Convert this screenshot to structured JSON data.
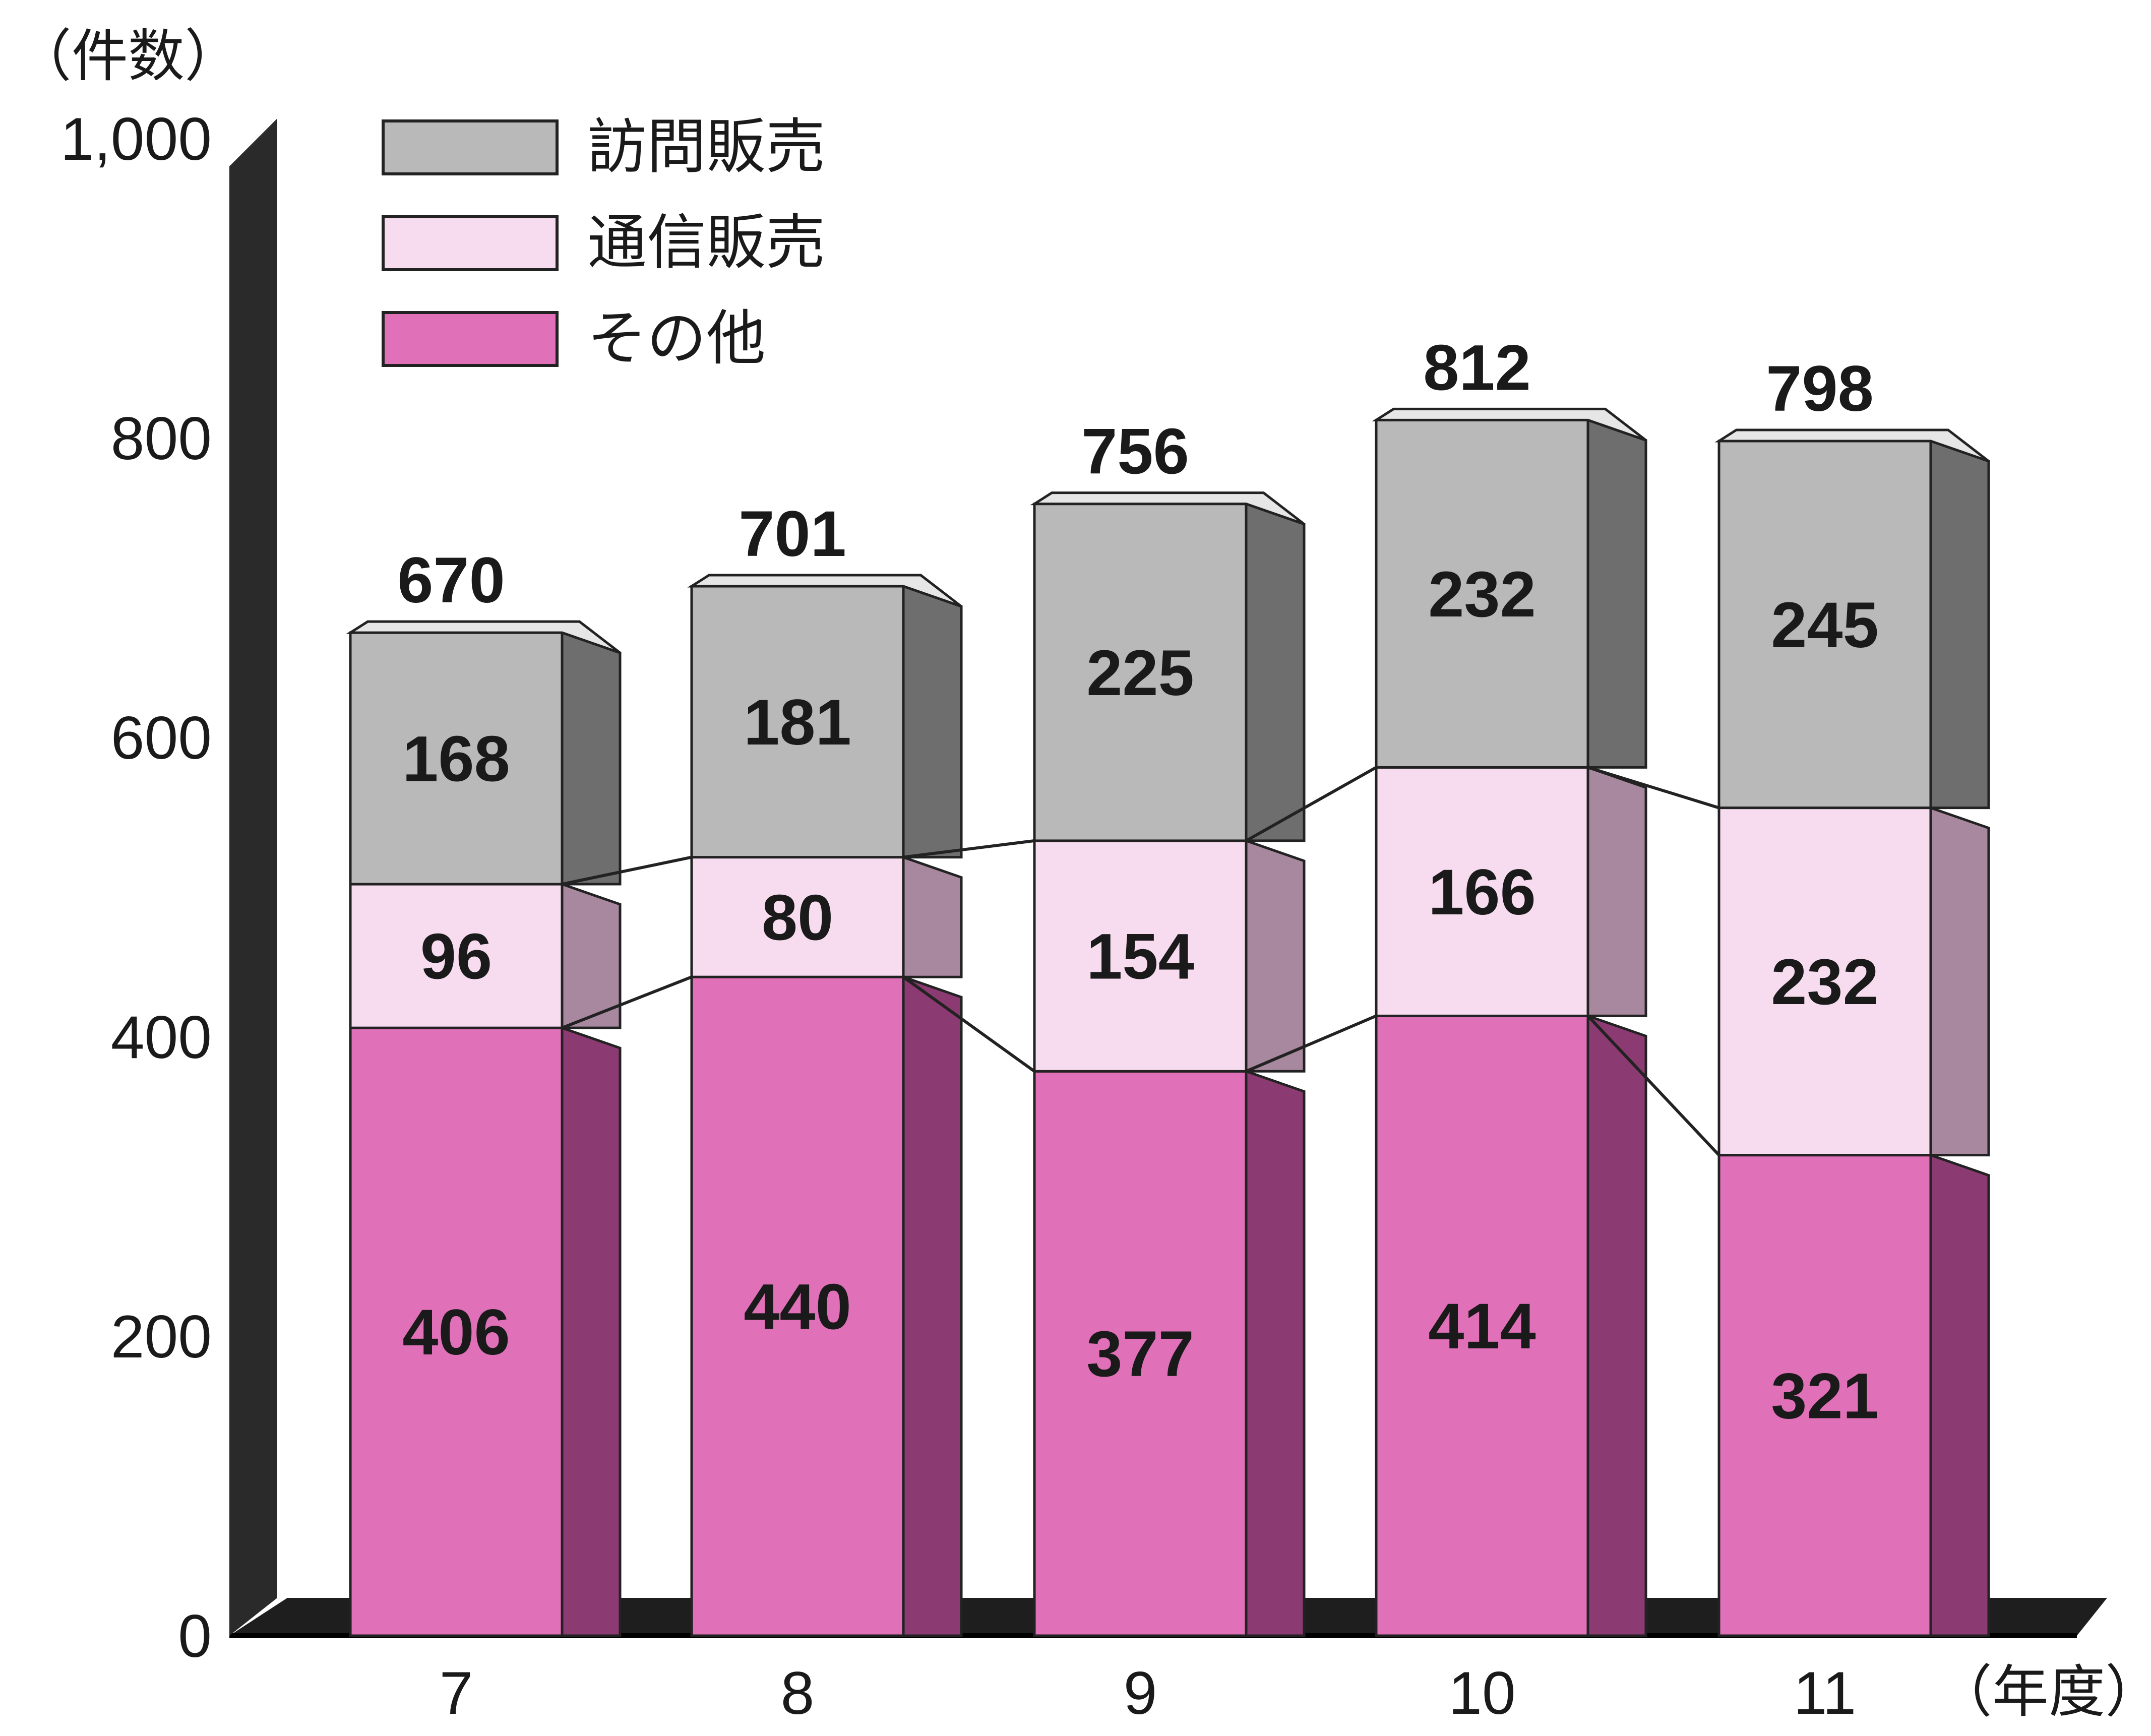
{
  "chart_data": {
    "type": "bar",
    "stacked": true,
    "categories": [
      "7",
      "8",
      "9",
      "10",
      "11"
    ],
    "series": [
      {
        "name": "その他",
        "values": [
          406,
          440,
          377,
          414,
          321
        ],
        "color": "#e070b8"
      },
      {
        "name": "通信販売",
        "values": [
          96,
          80,
          154,
          166,
          232
        ],
        "color": "#f7dcef"
      },
      {
        "name": "訪問販売",
        "values": [
          168,
          181,
          225,
          232,
          245
        ],
        "color": "#b9b9b9"
      }
    ],
    "totals": [
      "670",
      "701",
      "756",
      "812",
      "798"
    ],
    "legend_order": [
      "訪問販売",
      "通信販売",
      "その他"
    ],
    "legend_placement": "top-left",
    "ylabel": "（件数）",
    "xlabel": "（年度）",
    "ylim": [
      0,
      1000
    ],
    "yticks": [
      0,
      200,
      400,
      600,
      800,
      1000
    ],
    "ytick_labels": [
      "0",
      "200",
      "400",
      "600",
      "800",
      "1,000"
    ],
    "grid": false
  }
}
